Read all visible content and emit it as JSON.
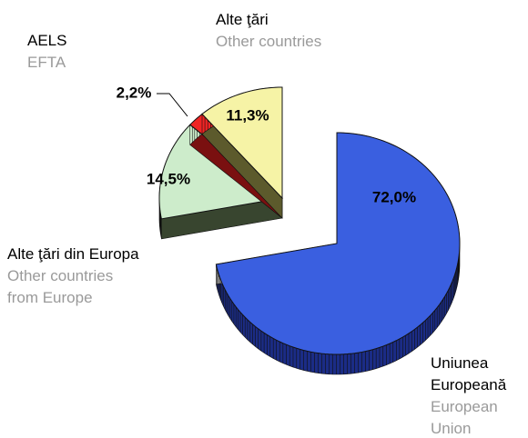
{
  "chart_data": {
    "type": "pie",
    "categories": [
      "Uniunea Europeană",
      "Alte ţări din Europa",
      "AELS",
      "Alte ţări"
    ],
    "categories_en": [
      "European Union",
      "Other countries from Europe",
      "EFTA",
      "Other countries"
    ],
    "values": [
      72.0,
      14.5,
      2.2,
      11.3
    ],
    "value_labels": [
      "72,0%",
      "14,5%",
      "2,2%",
      "11,3%"
    ],
    "colors": [
      "#3a5fe0",
      "#cdeccb",
      "#f02424",
      "#f6f3a6"
    ],
    "side_colors": [
      "#1b2c86",
      "#38452f",
      "#7a1010",
      "#5c5a2c"
    ]
  }
}
